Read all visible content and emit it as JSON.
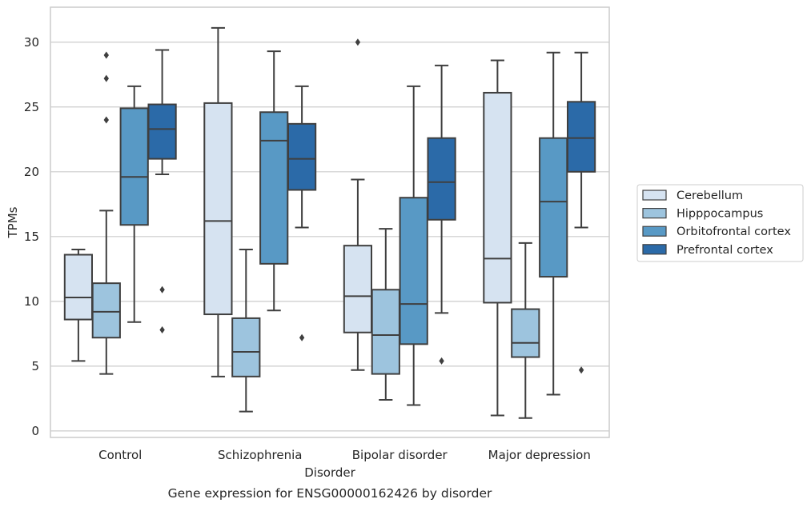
{
  "chart_data": {
    "type": "box",
    "caption": "Gene expression for ENSG00000162426 by disorder",
    "xlabel": "Disorder",
    "ylabel": "TPMs",
    "ylim": [
      -0.5,
      32.7
    ],
    "yticks": [
      0,
      5,
      10,
      15,
      20,
      25,
      30
    ],
    "grid": "horizontal",
    "legend_position": "right",
    "categories": [
      "Control",
      "Schizophrenia",
      "Bipolar disorder",
      "Major depression"
    ],
    "series": [
      {
        "name": "Cerebellum",
        "color": "#d6e3f1",
        "boxes": [
          {
            "whislo": 5.4,
            "q1": 8.6,
            "med": 10.3,
            "q3": 13.6,
            "whishi": 14.0,
            "fliers": []
          },
          {
            "whislo": 4.2,
            "q1": 9.0,
            "med": 16.2,
            "q3": 25.3,
            "whishi": 31.1,
            "fliers": []
          },
          {
            "whislo": 4.7,
            "q1": 7.6,
            "med": 10.4,
            "q3": 14.3,
            "whishi": 19.4,
            "fliers": [
              30.0
            ]
          },
          {
            "whislo": 1.2,
            "q1": 9.9,
            "med": 13.3,
            "q3": 26.1,
            "whishi": 28.6,
            "fliers": []
          }
        ]
      },
      {
        "name": "Hipppocampus",
        "color": "#9dc4de",
        "boxes": [
          {
            "whislo": 4.4,
            "q1": 7.2,
            "med": 9.2,
            "q3": 11.4,
            "whishi": 17.0,
            "fliers": [
              29.0,
              27.2,
              24.0
            ]
          },
          {
            "whislo": 1.5,
            "q1": 4.2,
            "med": 6.1,
            "q3": 8.7,
            "whishi": 14.0,
            "fliers": []
          },
          {
            "whislo": 2.4,
            "q1": 4.4,
            "med": 7.4,
            "q3": 10.9,
            "whishi": 15.6,
            "fliers": []
          },
          {
            "whislo": 1.0,
            "q1": 5.7,
            "med": 6.8,
            "q3": 9.4,
            "whishi": 14.5,
            "fliers": []
          }
        ]
      },
      {
        "name": "Orbitofrontal cortex",
        "color": "#5899c5",
        "boxes": [
          {
            "whislo": 8.4,
            "q1": 15.9,
            "med": 19.6,
            "q3": 24.9,
            "whishi": 26.6,
            "fliers": []
          },
          {
            "whislo": 9.3,
            "q1": 12.9,
            "med": 22.4,
            "q3": 24.6,
            "whishi": 29.3,
            "fliers": []
          },
          {
            "whislo": 2.0,
            "q1": 6.7,
            "med": 9.8,
            "q3": 18.0,
            "whishi": 26.6,
            "fliers": []
          },
          {
            "whislo": 2.8,
            "q1": 11.9,
            "med": 17.7,
            "q3": 22.6,
            "whishi": 29.2,
            "fliers": []
          }
        ]
      },
      {
        "name": "Prefrontal cortex",
        "color": "#2b6aa8",
        "boxes": [
          {
            "whislo": 19.8,
            "q1": 21.0,
            "med": 23.3,
            "q3": 25.2,
            "whishi": 29.4,
            "fliers": [
              10.9,
              7.8
            ]
          },
          {
            "whislo": 15.7,
            "q1": 18.6,
            "med": 21.0,
            "q3": 23.7,
            "whishi": 26.6,
            "fliers": [
              7.2
            ]
          },
          {
            "whislo": 9.1,
            "q1": 16.3,
            "med": 19.2,
            "q3": 22.6,
            "whishi": 28.2,
            "fliers": [
              5.4
            ]
          },
          {
            "whislo": 15.7,
            "q1": 20.0,
            "med": 22.6,
            "q3": 25.4,
            "whishi": 29.2,
            "fliers": [
              4.7
            ]
          }
        ]
      }
    ]
  }
}
